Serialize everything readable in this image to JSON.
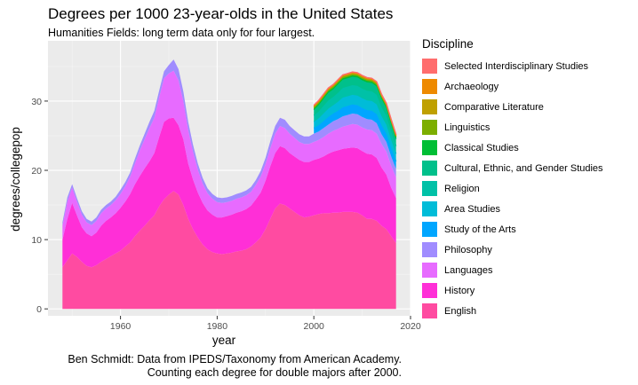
{
  "chart_data": {
    "type": "area",
    "stacked": true,
    "title": "Degrees per 1000 23-year-olds in the United States",
    "subtitle": "Humanities Fields: long term data only for four largest.",
    "xlabel": "year",
    "ylabel": "degrees/collegepop",
    "xlim": [
      1945,
      2020
    ],
    "ylim": [
      -1,
      38.7
    ],
    "x_ticks": [
      1960,
      1980,
      2000,
      2020
    ],
    "x_tick_labels": [
      "1960",
      "1980",
      "2000",
      "2020"
    ],
    "y_ticks": [
      0,
      10,
      20,
      30
    ],
    "y_tick_labels": [
      "0",
      "10",
      "20",
      "30"
    ],
    "legend_title": "Discipline",
    "legend_position": "right",
    "caption_lines": [
      "Ben Schmidt: Data from IPEDS/Taxonomy from American Academy.",
      "Counting each degree for double majors after 2000."
    ],
    "x": [
      1948,
      1949,
      1950,
      1951,
      1952,
      1953,
      1954,
      1955,
      1956,
      1957,
      1958,
      1959,
      1960,
      1961,
      1962,
      1963,
      1964,
      1965,
      1966,
      1967,
      1968,
      1969,
      1970,
      1971,
      1972,
      1973,
      1974,
      1975,
      1976,
      1977,
      1978,
      1979,
      1980,
      1981,
      1982,
      1983,
      1984,
      1985,
      1986,
      1987,
      1988,
      1989,
      1990,
      1991,
      1992,
      1993,
      1994,
      1995,
      1996,
      1997,
      1998,
      1999,
      2000,
      2001,
      2002,
      2003,
      2004,
      2005,
      2006,
      2007,
      2008,
      2009,
      2010,
      2011,
      2012,
      2013,
      2014,
      2015,
      2016,
      2017
    ],
    "series": [
      {
        "name": "English",
        "color": "#FF4BA1",
        "values": [
          6.0,
          7.0,
          8.0,
          7.5,
          6.8,
          6.2,
          6.0,
          6.3,
          6.8,
          7.2,
          7.6,
          8.0,
          8.4,
          9.0,
          9.6,
          10.5,
          11.3,
          12.0,
          12.8,
          13.5,
          14.8,
          15.8,
          16.5,
          17.0,
          16.5,
          15.0,
          13.0,
          11.5,
          10.3,
          9.3,
          8.6,
          8.2,
          8.0,
          7.9,
          8.0,
          8.1,
          8.3,
          8.4,
          8.6,
          9.0,
          9.6,
          10.3,
          11.5,
          13.0,
          14.5,
          15.2,
          15.0,
          14.5,
          14.0,
          13.5,
          13.2,
          13.3,
          13.5,
          13.7,
          13.8,
          13.8,
          13.9,
          13.9,
          14.0,
          14.0,
          14.0,
          13.9,
          13.5,
          13.0,
          13.0,
          12.7,
          12.0,
          11.5,
          10.5,
          9.5
        ]
      },
      {
        "name": "History",
        "color": "#FF2FD7",
        "values": [
          4.0,
          6.0,
          7.3,
          6.0,
          5.0,
          4.7,
          4.5,
          4.7,
          5.2,
          5.5,
          5.6,
          5.8,
          6.2,
          6.5,
          7.0,
          7.5,
          7.9,
          8.3,
          8.5,
          9.0,
          10.0,
          11.2,
          11.0,
          10.6,
          10.0,
          9.5,
          8.0,
          7.2,
          6.5,
          6.0,
          5.6,
          5.4,
          5.2,
          5.3,
          5.4,
          5.5,
          5.6,
          5.7,
          5.8,
          5.9,
          6.2,
          6.5,
          7.0,
          7.6,
          8.0,
          8.3,
          8.2,
          8.0,
          8.0,
          8.0,
          8.0,
          7.9,
          8.0,
          8.0,
          8.2,
          8.6,
          8.8,
          9.0,
          9.1,
          9.2,
          9.3,
          9.3,
          9.3,
          9.4,
          9.3,
          9.1,
          8.4,
          7.9,
          7.0,
          6.5
        ]
      },
      {
        "name": "Languages",
        "color": "#E76BFF",
        "values": [
          2.0,
          2.5,
          2.2,
          2.0,
          1.8,
          1.6,
          1.6,
          1.7,
          1.8,
          1.8,
          1.8,
          1.9,
          2.0,
          2.2,
          2.5,
          3.0,
          3.7,
          4.2,
          4.8,
          5.1,
          5.7,
          6.3,
          6.5,
          6.8,
          6.5,
          5.5,
          4.8,
          4.0,
          3.3,
          2.8,
          2.5,
          2.3,
          2.2,
          2.1,
          2.0,
          2.0,
          2.0,
          2.0,
          2.0,
          2.0,
          2.1,
          2.3,
          2.4,
          2.6,
          2.8,
          2.9,
          2.9,
          2.8,
          2.7,
          2.6,
          2.6,
          2.6,
          2.6,
          2.7,
          2.8,
          2.9,
          3.0,
          3.1,
          3.2,
          3.3,
          3.4,
          3.4,
          3.4,
          3.5,
          3.5,
          3.5,
          3.4,
          3.3,
          3.2,
          3.0
        ]
      },
      {
        "name": "Philosophy",
        "color": "#A08CFF",
        "values": [
          0.5,
          0.6,
          0.5,
          0.5,
          0.5,
          0.5,
          0.5,
          0.5,
          0.5,
          0.5,
          0.5,
          0.5,
          0.6,
          0.6,
          0.6,
          0.7,
          0.7,
          0.8,
          0.9,
          1.0,
          1.0,
          1.0,
          1.2,
          1.6,
          1.6,
          1.4,
          1.2,
          1.0,
          0.9,
          0.8,
          0.7,
          0.7,
          0.7,
          0.7,
          0.7,
          0.7,
          0.7,
          0.7,
          0.7,
          0.7,
          0.7,
          0.8,
          0.9,
          1.0,
          1.1,
          1.2,
          1.2,
          1.1,
          1.1,
          1.1,
          1.1,
          1.1,
          1.2,
          1.2,
          1.3,
          1.3,
          1.4,
          1.4,
          1.5,
          1.5,
          1.5,
          1.5,
          1.5,
          1.5,
          1.5,
          1.5,
          1.4,
          1.4,
          1.3,
          1.2
        ]
      },
      {
        "name": "Study of the Arts",
        "color": "#00A6FF",
        "values": [
          0,
          0,
          0,
          0,
          0,
          0,
          0,
          0,
          0,
          0,
          0,
          0,
          0,
          0,
          0,
          0,
          0,
          0,
          0,
          0,
          0,
          0,
          0,
          0,
          0,
          0,
          0,
          0,
          0,
          0,
          0,
          0,
          0,
          0,
          0,
          0,
          0,
          0,
          0,
          0,
          0,
          0,
          0,
          0,
          0,
          0,
          0,
          0,
          0,
          0,
          0,
          0,
          0.8,
          0.9,
          1.0,
          1.1,
          1.1,
          1.2,
          1.3,
          1.3,
          1.3,
          1.3,
          1.3,
          1.3,
          1.3,
          1.3,
          1.3,
          1.2,
          1.2,
          1.1
        ]
      },
      {
        "name": "Area Studies",
        "color": "#00BCD8",
        "values": [
          0,
          0,
          0,
          0,
          0,
          0,
          0,
          0,
          0,
          0,
          0,
          0,
          0,
          0,
          0,
          0,
          0,
          0,
          0,
          0,
          0,
          0,
          0,
          0,
          0,
          0,
          0,
          0,
          0,
          0,
          0,
          0,
          0,
          0,
          0,
          0,
          0,
          0,
          0,
          0,
          0,
          0,
          0,
          0,
          0,
          0,
          0,
          0,
          0,
          0,
          0,
          0,
          0.9,
          1.0,
          1.1,
          1.2,
          1.2,
          1.3,
          1.4,
          1.4,
          1.4,
          1.4,
          1.4,
          1.4,
          1.4,
          1.4,
          1.3,
          1.3,
          1.2,
          1.1
        ]
      },
      {
        "name": "Religion",
        "color": "#00C1A7",
        "values": [
          0,
          0,
          0,
          0,
          0,
          0,
          0,
          0,
          0,
          0,
          0,
          0,
          0,
          0,
          0,
          0,
          0,
          0,
          0,
          0,
          0,
          0,
          0,
          0,
          0,
          0,
          0,
          0,
          0,
          0,
          0,
          0,
          0,
          0,
          0,
          0,
          0,
          0,
          0,
          0,
          0,
          0,
          0,
          0,
          0,
          0,
          0,
          0,
          0,
          0,
          0,
          0,
          0.9,
          1.0,
          1.1,
          1.2,
          1.2,
          1.3,
          1.4,
          1.4,
          1.4,
          1.4,
          1.4,
          1.4,
          1.4,
          1.4,
          1.3,
          1.3,
          1.2,
          1.1
        ]
      },
      {
        "name": "Cultural, Ethnic, and Gender Studies",
        "color": "#00C08B",
        "values": [
          0,
          0,
          0,
          0,
          0,
          0,
          0,
          0,
          0,
          0,
          0,
          0,
          0,
          0,
          0,
          0,
          0,
          0,
          0,
          0,
          0,
          0,
          0,
          0,
          0,
          0,
          0,
          0,
          0,
          0,
          0,
          0,
          0,
          0,
          0,
          0,
          0,
          0,
          0,
          0,
          0,
          0,
          0,
          0,
          0,
          0,
          0,
          0,
          0,
          0,
          0,
          0,
          0.8,
          0.9,
          1.0,
          1.1,
          1.1,
          1.2,
          1.2,
          1.2,
          1.2,
          1.2,
          1.2,
          1.2,
          1.2,
          1.2,
          1.2,
          1.1,
          1.1,
          1.0
        ]
      },
      {
        "name": "Classical Studies",
        "color": "#00BE35",
        "values": [
          0,
          0,
          0,
          0,
          0,
          0,
          0,
          0,
          0,
          0,
          0,
          0,
          0,
          0,
          0,
          0,
          0,
          0,
          0,
          0,
          0,
          0,
          0,
          0,
          0,
          0,
          0,
          0,
          0,
          0,
          0,
          0,
          0,
          0,
          0,
          0,
          0,
          0,
          0,
          0,
          0,
          0,
          0,
          0,
          0,
          0,
          0,
          0,
          0,
          0,
          0,
          0,
          0.2,
          0.2,
          0.2,
          0.2,
          0.2,
          0.2,
          0.2,
          0.2,
          0.2,
          0.2,
          0.2,
          0.2,
          0.2,
          0.2,
          0.2,
          0.2,
          0.2,
          0.2
        ]
      },
      {
        "name": "Linguistics",
        "color": "#7CAE00",
        "values": [
          0,
          0,
          0,
          0,
          0,
          0,
          0,
          0,
          0,
          0,
          0,
          0,
          0,
          0,
          0,
          0,
          0,
          0,
          0,
          0,
          0,
          0,
          0,
          0,
          0,
          0,
          0,
          0,
          0,
          0,
          0,
          0,
          0,
          0,
          0,
          0,
          0,
          0,
          0,
          0,
          0,
          0,
          0,
          0,
          0,
          0,
          0,
          0,
          0,
          0,
          0,
          0,
          0.2,
          0.2,
          0.2,
          0.2,
          0.2,
          0.2,
          0.2,
          0.2,
          0.2,
          0.2,
          0.2,
          0.2,
          0.2,
          0.2,
          0.2,
          0.2,
          0.2,
          0.2
        ]
      },
      {
        "name": "Comparative Literature",
        "color": "#BFA000",
        "values": [
          0,
          0,
          0,
          0,
          0,
          0,
          0,
          0,
          0,
          0,
          0,
          0,
          0,
          0,
          0,
          0,
          0,
          0,
          0,
          0,
          0,
          0,
          0,
          0,
          0,
          0,
          0,
          0,
          0,
          0,
          0,
          0,
          0,
          0,
          0,
          0,
          0,
          0,
          0,
          0,
          0,
          0,
          0,
          0,
          0,
          0,
          0,
          0,
          0,
          0,
          0,
          0,
          0.1,
          0.1,
          0.1,
          0.1,
          0.1,
          0.1,
          0.1,
          0.1,
          0.1,
          0.1,
          0.1,
          0.1,
          0.1,
          0.1,
          0.1,
          0.1,
          0.1,
          0.1
        ]
      },
      {
        "name": "Archaeology",
        "color": "#EE8A00",
        "values": [
          0,
          0,
          0,
          0,
          0,
          0,
          0,
          0,
          0,
          0,
          0,
          0,
          0,
          0,
          0,
          0,
          0,
          0,
          0,
          0,
          0,
          0,
          0,
          0,
          0,
          0,
          0,
          0,
          0,
          0,
          0,
          0,
          0,
          0,
          0,
          0,
          0,
          0,
          0,
          0,
          0,
          0,
          0,
          0,
          0,
          0,
          0,
          0,
          0,
          0,
          0,
          0,
          0.1,
          0.1,
          0.1,
          0.1,
          0.1,
          0.1,
          0.1,
          0.1,
          0.1,
          0.1,
          0.1,
          0.1,
          0.1,
          0.1,
          0.1,
          0.1,
          0.1,
          0.1
        ]
      },
      {
        "name": "Selected Interdisciplinary Studies",
        "color": "#FF6D6D",
        "values": [
          0,
          0,
          0,
          0,
          0,
          0,
          0,
          0,
          0,
          0,
          0,
          0,
          0,
          0,
          0,
          0,
          0,
          0,
          0,
          0,
          0,
          0,
          0,
          0,
          0,
          0,
          0,
          0,
          0,
          0,
          0,
          0,
          0,
          0,
          0,
          0,
          0,
          0,
          0,
          0,
          0,
          0,
          0,
          0,
          0,
          0,
          0,
          0,
          0,
          0,
          0,
          0,
          0.1,
          0.1,
          0.1,
          0.1,
          0.1,
          0.1,
          0.1,
          0.1,
          0.1,
          0.1,
          0.1,
          0.1,
          0.1,
          0.1,
          0.1,
          0.1,
          0.1,
          0.1
        ]
      }
    ],
    "legend_order": [
      "Selected Interdisciplinary Studies",
      "Archaeology",
      "Comparative Literature",
      "Linguistics",
      "Classical Studies",
      "Cultural, Ethnic, and Gender Studies",
      "Religion",
      "Area Studies",
      "Study of the Arts",
      "Philosophy",
      "Languages",
      "History",
      "English"
    ]
  }
}
